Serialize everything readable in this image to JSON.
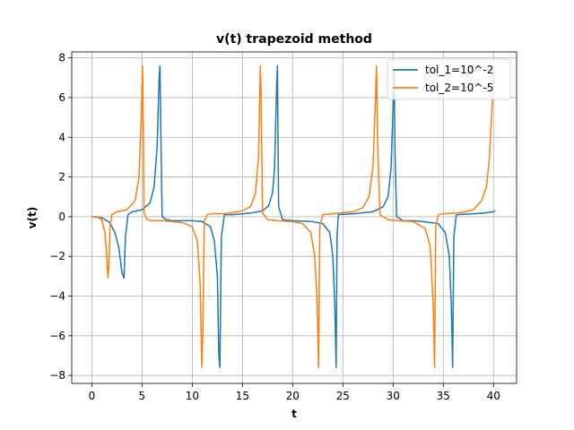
{
  "chart_data": {
    "type": "line",
    "title": "v(t) trapezoid method",
    "xlabel": "t",
    "ylabel": "v(t)",
    "xlim": [
      -2.0,
      42.3
    ],
    "ylim": [
      -8.4,
      8.3
    ],
    "xticks": [
      0,
      5,
      10,
      15,
      20,
      25,
      30,
      35,
      40
    ],
    "yticks": [
      -8,
      -6,
      -4,
      -2,
      0,
      2,
      4,
      6,
      8
    ],
    "grid": true,
    "legend_position": "top-right",
    "series": [
      {
        "name": "tol_1=10^-2",
        "color": "#1f77b4",
        "x": [
          0.0,
          1.0,
          1.8,
          2.3,
          2.7,
          3.0,
          3.2,
          3.35,
          3.6,
          4.0,
          5.0,
          5.8,
          6.2,
          6.5,
          6.7,
          6.78,
          6.85,
          7.0,
          7.4,
          8.0,
          9.0,
          10.0,
          11.0,
          11.8,
          12.2,
          12.5,
          12.65,
          12.75,
          12.9,
          13.2,
          14.0,
          15.0,
          16.0,
          17.0,
          17.6,
          18.0,
          18.2,
          18.4,
          18.48,
          18.6,
          19.0,
          20.0,
          22.0,
          23.0,
          23.7,
          24.0,
          24.2,
          24.33,
          24.42,
          24.55,
          25.0,
          26.0,
          27.0,
          28.0,
          29.0,
          29.5,
          29.8,
          30.0,
          30.1,
          30.2,
          30.35,
          31.0,
          32.0,
          33.0,
          34.5,
          35.2,
          35.6,
          35.8,
          35.93,
          36.05,
          36.3,
          37.0,
          38.0,
          39.0,
          40.0,
          40.2
        ],
        "y": [
          0.0,
          -0.05,
          -0.3,
          -0.8,
          -1.6,
          -2.8,
          -3.1,
          -1.0,
          0.1,
          0.25,
          0.35,
          0.7,
          1.5,
          3.5,
          7.0,
          7.6,
          5.0,
          0.0,
          -0.15,
          -0.2,
          -0.2,
          -0.2,
          -0.25,
          -0.5,
          -1.2,
          -3.0,
          -7.0,
          -7.6,
          -1.0,
          0.1,
          0.1,
          0.15,
          0.2,
          0.3,
          0.55,
          1.2,
          2.5,
          6.5,
          7.6,
          0.5,
          -0.15,
          -0.2,
          -0.25,
          -0.35,
          -0.8,
          -2.0,
          -4.5,
          -7.6,
          -1.0,
          0.1,
          0.12,
          0.15,
          0.2,
          0.25,
          0.5,
          1.0,
          2.5,
          5.5,
          7.4,
          3.0,
          0.0,
          -0.2,
          -0.2,
          -0.25,
          -0.35,
          -0.8,
          -2.0,
          -4.5,
          -7.6,
          -1.0,
          0.1,
          0.12,
          0.15,
          0.18,
          0.25,
          0.3
        ]
      },
      {
        "name": "tol_2=10^-5",
        "color": "#ff7f0e",
        "x": [
          0.0,
          0.5,
          1.0,
          1.3,
          1.5,
          1.6,
          1.7,
          1.8,
          2.0,
          2.5,
          3.5,
          4.3,
          4.7,
          4.95,
          5.05,
          5.1,
          5.2,
          5.5,
          6.0,
          7.0,
          8.0,
          9.0,
          10.0,
          10.5,
          10.8,
          10.95,
          11.05,
          11.2,
          11.5,
          12.0,
          13.0,
          14.0,
          15.0,
          15.8,
          16.3,
          16.6,
          16.78,
          16.85,
          17.0,
          17.5,
          18.5,
          20.0,
          21.0,
          21.8,
          22.2,
          22.45,
          22.58,
          22.7,
          23.0,
          24.0,
          25.0,
          26.0,
          27.0,
          27.6,
          28.0,
          28.25,
          28.35,
          28.45,
          28.7,
          29.5,
          30.5,
          32.0,
          33.2,
          33.7,
          34.0,
          34.13,
          34.25,
          34.5,
          35.0,
          36.0,
          37.0,
          38.0,
          38.8,
          39.3,
          39.6,
          39.8,
          39.95,
          40.05
        ],
        "y": [
          0.0,
          0.0,
          -0.15,
          -0.8,
          -2.0,
          -3.1,
          -2.5,
          -0.5,
          0.1,
          0.25,
          0.35,
          0.8,
          2.0,
          5.5,
          7.6,
          6.0,
          0.2,
          -0.15,
          -0.2,
          -0.2,
          -0.25,
          -0.3,
          -0.5,
          -1.2,
          -3.5,
          -7.6,
          -6.0,
          -0.2,
          0.1,
          0.15,
          0.15,
          0.2,
          0.3,
          0.5,
          1.2,
          3.0,
          7.6,
          6.5,
          0.2,
          -0.15,
          -0.2,
          -0.25,
          -0.35,
          -0.8,
          -2.0,
          -4.5,
          -7.6,
          -0.5,
          0.1,
          0.15,
          0.2,
          0.25,
          0.45,
          1.0,
          2.5,
          6.0,
          7.6,
          4.0,
          0.1,
          -0.15,
          -0.2,
          -0.25,
          -0.6,
          -1.5,
          -4.5,
          -7.6,
          -0.5,
          0.1,
          0.15,
          0.18,
          0.22,
          0.35,
          0.8,
          1.5,
          3.0,
          5.0,
          6.5,
          7.6
        ]
      }
    ]
  }
}
